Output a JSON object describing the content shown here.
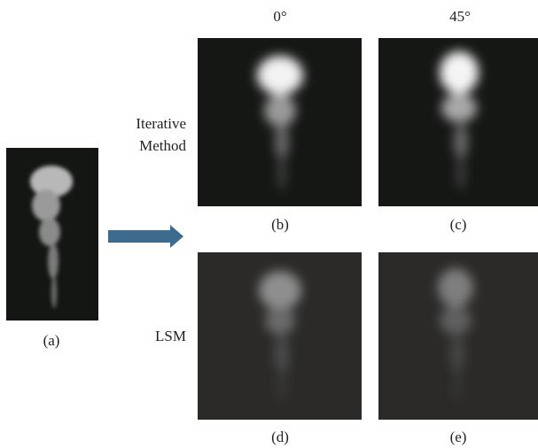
{
  "column_headers": [
    "0°",
    "45°"
  ],
  "row_labels": [
    [
      "Iterative",
      "Method"
    ],
    [
      "LSM"
    ]
  ],
  "panels": [
    {
      "label": "(a)"
    },
    {
      "label": "(b)"
    },
    {
      "label": "(c)"
    },
    {
      "label": "(d)"
    },
    {
      "label": "(e)"
    }
  ]
}
